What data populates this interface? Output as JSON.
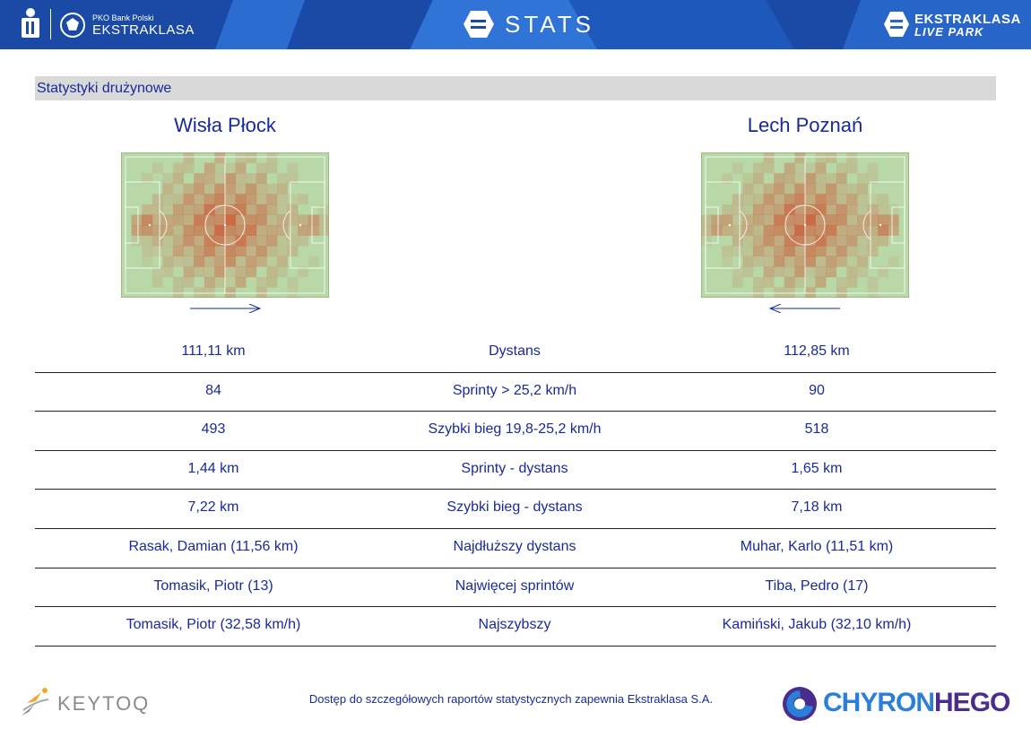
{
  "header": {
    "pko_small": "PKO Bank Polski",
    "ekstraklasa": "EKSTRAKLASA",
    "stats_label": "STATS",
    "livepark_line1": "EKSTRAKLASA",
    "livepark_line2": "LIVE PARK",
    "pko_logo_text": "PKO"
  },
  "section": {
    "title": "Statystyki drużynowe"
  },
  "teams": {
    "home": {
      "name": "Wisła Płock",
      "attack_direction": "right"
    },
    "away": {
      "name": "Lech Poznań",
      "attack_direction": "left"
    }
  },
  "stats": [
    {
      "home": "111,11 km",
      "label": "Dystans",
      "away": "112,85 km"
    },
    {
      "home": "84",
      "label": "Sprinty > 25,2 km/h",
      "away": "90"
    },
    {
      "home": "493",
      "label": "Szybki bieg 19,8-25,2 km/h",
      "away": "518"
    },
    {
      "home": "1,44 km",
      "label": "Sprinty - dystans",
      "away": "1,65 km"
    },
    {
      "home": "7,22 km",
      "label": "Szybki bieg - dystans",
      "away": "7,18 km"
    },
    {
      "home": "Rasak, Damian (11,56 km)",
      "label": "Najdłuższy dystans",
      "away": "Muhar, Karlo (11,51 km)"
    },
    {
      "home": "Tomasik, Piotr (13)",
      "label": "Najwięcej sprintów",
      "away": "Tiba, Pedro (17)"
    },
    {
      "home": "Tomasik, Piotr (32,58 km/h)",
      "label": "Najszybszy",
      "away": "Kamiński, Jakub (32,10 km/h)"
    }
  ],
  "footer": {
    "note": "Dostęp do szczegółowych raportów statystycznych zapewnia Ekstraklasa S.A.",
    "keytoq": "KEYTOQ",
    "chyron_a": "CHYRON",
    "chyron_b": "HEGO"
  },
  "colors": {
    "header_bg": "#1a4aa6",
    "text_blue": "#1a2a9a",
    "pitch_green": "#b9d8a8",
    "heat_red": "#d23a1a"
  }
}
